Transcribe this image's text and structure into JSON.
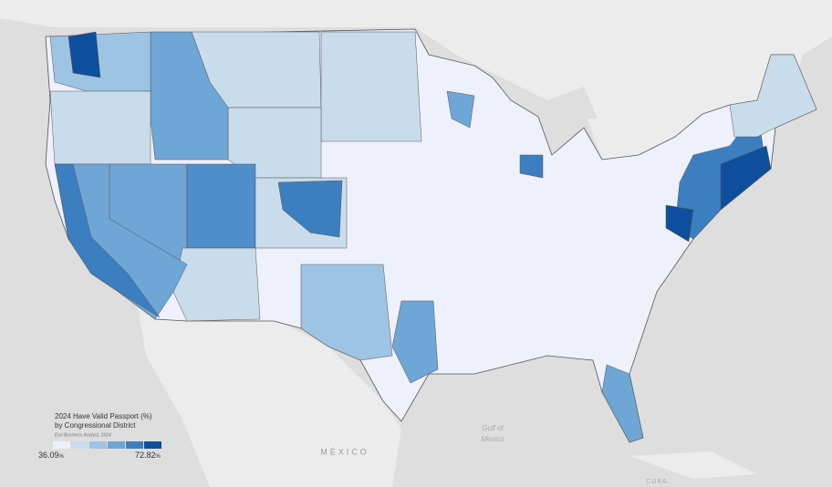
{
  "legend": {
    "title": "2024 Have Valid Passport (%)",
    "subtitle": "by Congressional District",
    "source": "Esri Business Analyst, 2024",
    "min": "36.09",
    "min_unit": "%",
    "max": "72.82",
    "max_unit": "%",
    "colors": [
      "#eef0fb",
      "#c9dcec",
      "#9ec4e3",
      "#6ea6d6",
      "#3b7fc0",
      "#0d4f9c"
    ]
  },
  "map_labels": {
    "gulf": "Gulf of",
    "gulf2": "Mexico",
    "mexico": "MÉXICO",
    "cuba": "CUBA"
  }
}
